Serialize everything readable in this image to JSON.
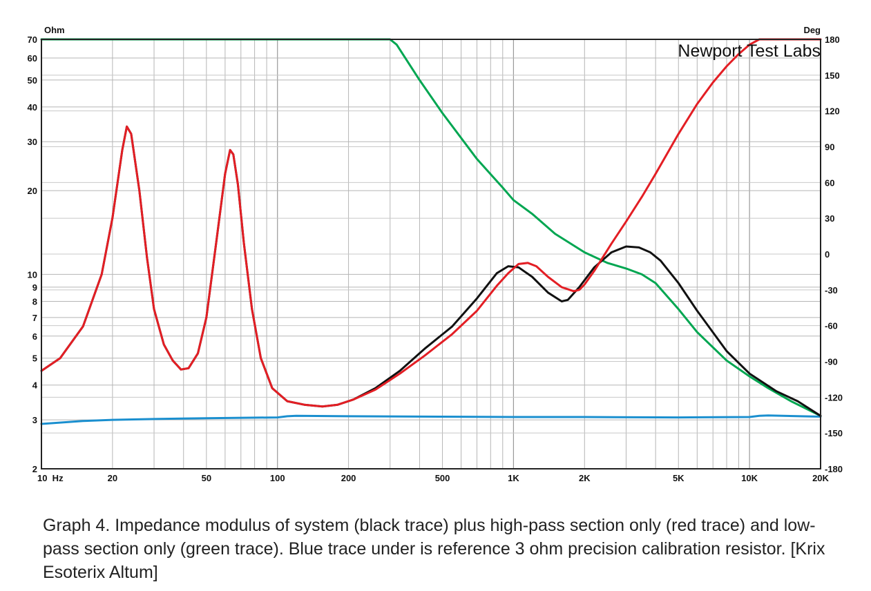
{
  "chart_data": {
    "type": "line",
    "brand": "Newport Test Labs",
    "y_left_unit": "Ohm",
    "y_right_unit": "Deg",
    "x_scale": "log",
    "y_left_scale": "log",
    "xlim": [
      10,
      20000
    ],
    "ylim_left": [
      2,
      70
    ],
    "ylim_right": [
      -180,
      180
    ],
    "grid": true,
    "x_ticks": [
      {
        "value": 10,
        "label": "10  Hz"
      },
      {
        "value": 20,
        "label": "20"
      },
      {
        "value": 50,
        "label": "50"
      },
      {
        "value": 100,
        "label": "100"
      },
      {
        "value": 200,
        "label": "200"
      },
      {
        "value": 500,
        "label": "500"
      },
      {
        "value": 1000,
        "label": "1K"
      },
      {
        "value": 2000,
        "label": "2K"
      },
      {
        "value": 5000,
        "label": "5K"
      },
      {
        "value": 10000,
        "label": "10K"
      },
      {
        "value": 20000,
        "label": "20K"
      }
    ],
    "y_left_ticks": [
      {
        "value": 2,
        "label": "2"
      },
      {
        "value": 3,
        "label": "3"
      },
      {
        "value": 4,
        "label": "4"
      },
      {
        "value": 5,
        "label": "5"
      },
      {
        "value": 6,
        "label": "6"
      },
      {
        "value": 7,
        "label": "7"
      },
      {
        "value": 8,
        "label": "8"
      },
      {
        "value": 9,
        "label": "9"
      },
      {
        "value": 10,
        "label": "10"
      },
      {
        "value": 20,
        "label": "20"
      },
      {
        "value": 30,
        "label": "30"
      },
      {
        "value": 40,
        "label": "40"
      },
      {
        "value": 50,
        "label": "50"
      },
      {
        "value": 60,
        "label": "60"
      },
      {
        "value": 70,
        "label": "70"
      }
    ],
    "y_right_ticks": [
      180,
      150,
      120,
      90,
      60,
      30,
      0,
      -30,
      -60,
      -90,
      -120,
      -150,
      -180
    ],
    "series": [
      {
        "color": "#00a651",
        "width": 3,
        "x": [
          10,
          300,
          320,
          400,
          500,
          700,
          900,
          1000,
          1200,
          1500,
          2000,
          2500,
          3000,
          3500,
          4000,
          5000,
          6000,
          8000,
          10000,
          12000,
          15000,
          20000
        ],
        "y": [
          70,
          70,
          67,
          50,
          38,
          26,
          20.5,
          18.5,
          16.5,
          14,
          12,
          11,
          10.5,
          10,
          9.3,
          7.5,
          6.2,
          4.9,
          4.3,
          3.9,
          3.5,
          3.1
        ]
      },
      {
        "color": "#1a8fcf",
        "width": 3,
        "x": [
          10,
          15,
          20,
          30,
          50,
          100,
          110,
          120,
          200,
          500,
          1000,
          2000,
          5000,
          10000,
          11000,
          12000,
          20000
        ],
        "y": [
          2.9,
          2.97,
          3.0,
          3.02,
          3.04,
          3.06,
          3.09,
          3.1,
          3.09,
          3.08,
          3.07,
          3.07,
          3.06,
          3.07,
          3.1,
          3.11,
          3.08
        ]
      },
      {
        "color": "#111111",
        "width": 3,
        "x": [
          10,
          12,
          15,
          18,
          20,
          22,
          23,
          24,
          26,
          28,
          30,
          33,
          36,
          39,
          42,
          46,
          50,
          55,
          60,
          63,
          65,
          68,
          72,
          78,
          85,
          95,
          110,
          130,
          155,
          180,
          210,
          260,
          330,
          420,
          550,
          700,
          850,
          950,
          1050,
          1200,
          1400,
          1600,
          1700,
          1900,
          2200,
          2600,
          3000,
          3400,
          3800,
          4200,
          5000,
          6000,
          8000,
          10000,
          13000,
          16000,
          20000
        ],
        "y": [
          4.5,
          5.0,
          6.5,
          10.0,
          16.0,
          28.0,
          34.0,
          32.0,
          20.0,
          11.5,
          7.5,
          5.6,
          4.9,
          4.55,
          4.6,
          5.2,
          7.0,
          13.0,
          23.0,
          28.0,
          27.0,
          21.0,
          13.0,
          7.5,
          5.0,
          3.9,
          3.5,
          3.4,
          3.35,
          3.4,
          3.55,
          3.9,
          4.5,
          5.4,
          6.5,
          8.2,
          10.1,
          10.7,
          10.6,
          9.8,
          8.6,
          8.0,
          8.1,
          9.0,
          10.6,
          12.0,
          12.6,
          12.5,
          12.0,
          11.2,
          9.3,
          7.4,
          5.3,
          4.4,
          3.8,
          3.5,
          3.1
        ]
      },
      {
        "color": "#e31e24",
        "width": 3,
        "x": [
          10,
          12,
          15,
          18,
          20,
          22,
          23,
          24,
          26,
          28,
          30,
          33,
          36,
          39,
          42,
          46,
          50,
          55,
          60,
          63,
          65,
          68,
          72,
          78,
          85,
          95,
          110,
          130,
          155,
          180,
          210,
          260,
          330,
          420,
          550,
          700,
          850,
          950,
          1050,
          1150,
          1250,
          1400,
          1600,
          1800,
          1900,
          2000,
          2200,
          2600,
          3000,
          3500,
          4000,
          5000,
          6000,
          7000,
          8000,
          9000,
          10000,
          11000,
          20000
        ],
        "y": [
          4.5,
          5.0,
          6.5,
          10.0,
          16.0,
          28.0,
          34.0,
          32.0,
          20.0,
          11.5,
          7.5,
          5.6,
          4.9,
          4.55,
          4.6,
          5.2,
          7.0,
          13.0,
          23.0,
          28.0,
          27.0,
          21.0,
          13.0,
          7.5,
          5.0,
          3.9,
          3.5,
          3.4,
          3.35,
          3.4,
          3.55,
          3.85,
          4.4,
          5.1,
          6.1,
          7.4,
          9.1,
          10.1,
          10.9,
          11.0,
          10.7,
          9.8,
          9.0,
          8.7,
          8.8,
          9.2,
          10.3,
          12.9,
          15.5,
          19.0,
          23.0,
          32.0,
          41.0,
          49.0,
          56.0,
          62.0,
          67.0,
          70.0,
          70.0
        ]
      }
    ]
  },
  "caption": "Graph 4. Impedance modulus of system (black trace) plus high-pass section only (red trace) and low-pass section only (green trace). Blue trace under is reference 3 ohm precision calibration resistor. [Krix Esoterix Altum]"
}
